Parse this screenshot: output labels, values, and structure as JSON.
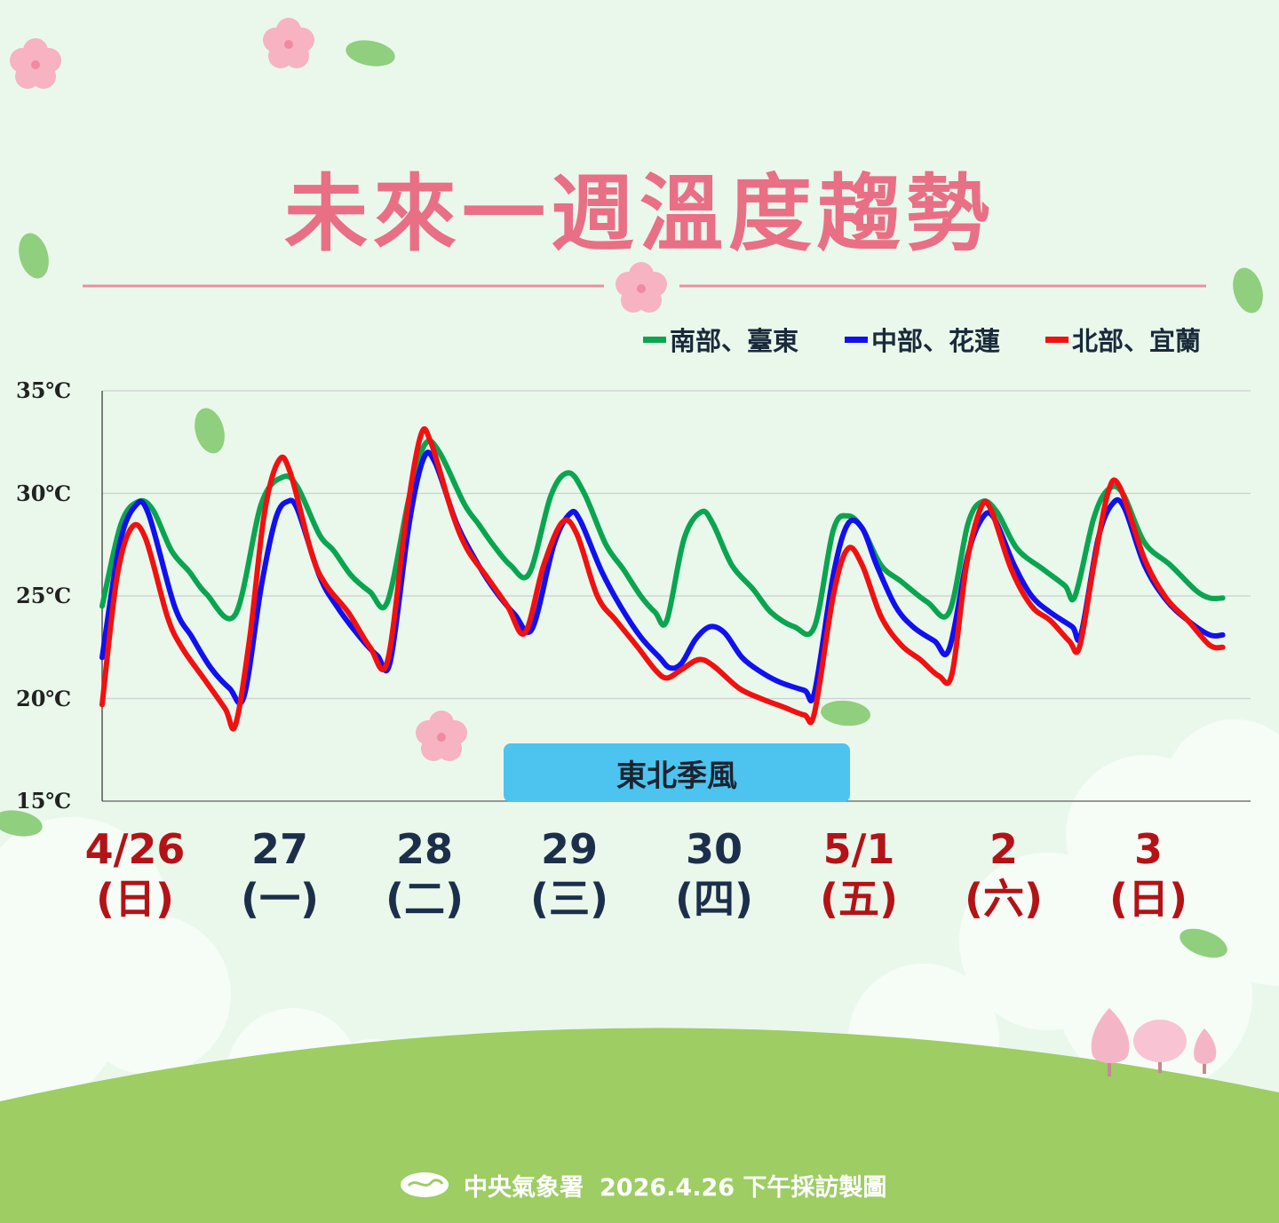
{
  "title": "未來一週溫度趨勢",
  "legend": [
    {
      "label": "南部、臺東",
      "color": "#0aa54f"
    },
    {
      "label": "中部、花蓮",
      "color": "#1010f0"
    },
    {
      "label": "北部、宜蘭",
      "color": "#f21010"
    }
  ],
  "annotation": "東北季風",
  "footer": {
    "agency": "中央氣象署",
    "note": "2026.4.26 下午採訪製圖"
  },
  "colors": {
    "title": "#e96f85",
    "grass": "#9dcd63",
    "background": "#eaf8ec",
    "weekend_date": "#b31217",
    "weekday_date": "#1c2f4a",
    "annotation_box": "#4cc4ef"
  },
  "chart_data": {
    "type": "line",
    "ylim": [
      15,
      35
    ],
    "yticks": [
      "35℃",
      "30℃",
      "25℃",
      "20℃",
      "15℃"
    ],
    "ytick_values": [
      35,
      30,
      25,
      20,
      15
    ],
    "grid": true,
    "legend_position": "top-right",
    "categories": [
      {
        "date": "4/26",
        "weekday": "(日)",
        "weekend": true
      },
      {
        "date": "27",
        "weekday": "(一)",
        "weekend": false
      },
      {
        "date": "28",
        "weekday": "(二)",
        "weekend": false
      },
      {
        "date": "29",
        "weekday": "(三)",
        "weekend": false
      },
      {
        "date": "30",
        "weekday": "(四)",
        "weekend": false
      },
      {
        "date": "5/1",
        "weekday": "(五)",
        "weekend": true
      },
      {
        "date": "2",
        "weekday": "(六)",
        "weekend": true
      },
      {
        "date": "3",
        "weekday": "(日)",
        "weekend": true
      }
    ],
    "x_unit": "days from 4/26 start",
    "series": [
      {
        "name": "南部、臺東",
        "color": "#0aa54f",
        "points": [
          [
            0,
            24.5
          ],
          [
            0.13,
            28.5
          ],
          [
            0.25,
            29.6
          ],
          [
            0.35,
            29.2
          ],
          [
            0.48,
            27.2
          ],
          [
            0.6,
            26.2
          ],
          [
            0.72,
            25.1
          ],
          [
            0.92,
            24.1
          ],
          [
            1.1,
            29.5
          ],
          [
            1.25,
            30.8
          ],
          [
            1.35,
            30.3
          ],
          [
            1.5,
            28.0
          ],
          [
            1.6,
            27.2
          ],
          [
            1.72,
            26.0
          ],
          [
            1.85,
            25.2
          ],
          [
            1.97,
            24.7
          ],
          [
            2.12,
            29.8
          ],
          [
            2.23,
            32.4
          ],
          [
            2.33,
            32.0
          ],
          [
            2.5,
            29.5
          ],
          [
            2.6,
            28.5
          ],
          [
            2.7,
            27.5
          ],
          [
            2.82,
            26.5
          ],
          [
            2.95,
            26.1
          ],
          [
            3.1,
            29.9
          ],
          [
            3.22,
            31.0
          ],
          [
            3.33,
            30.0
          ],
          [
            3.48,
            27.5
          ],
          [
            3.6,
            26.3
          ],
          [
            3.72,
            25.0
          ],
          [
            3.82,
            24.2
          ],
          [
            3.9,
            23.8
          ],
          [
            4.02,
            27.8
          ],
          [
            4.14,
            29.1
          ],
          [
            4.22,
            28.5
          ],
          [
            4.35,
            26.5
          ],
          [
            4.5,
            25.3
          ],
          [
            4.62,
            24.2
          ],
          [
            4.78,
            23.5
          ],
          [
            4.92,
            23.5
          ],
          [
            5.05,
            28.2
          ],
          [
            5.15,
            28.9
          ],
          [
            5.25,
            28.3
          ],
          [
            5.38,
            26.5
          ],
          [
            5.52,
            25.7
          ],
          [
            5.7,
            24.7
          ],
          [
            5.85,
            24.2
          ],
          [
            5.98,
            28.5
          ],
          [
            6.08,
            29.6
          ],
          [
            6.18,
            29.1
          ],
          [
            6.32,
            27.3
          ],
          [
            6.5,
            26.3
          ],
          [
            6.65,
            25.5
          ],
          [
            6.72,
            25.0
          ],
          [
            6.85,
            28.8
          ],
          [
            6.95,
            30.2
          ],
          [
            7.05,
            30.0
          ],
          [
            7.2,
            27.6
          ],
          [
            7.38,
            26.5
          ],
          [
            7.55,
            25.3
          ],
          [
            7.65,
            24.9
          ],
          [
            7.74,
            24.9
          ]
        ]
      },
      {
        "name": "中部、花蓮",
        "color": "#1010f0",
        "points": [
          [
            0,
            22.0
          ],
          [
            0.12,
            27.5
          ],
          [
            0.23,
            29.4
          ],
          [
            0.32,
            29.0
          ],
          [
            0.5,
            24.5
          ],
          [
            0.62,
            23.0
          ],
          [
            0.75,
            21.5
          ],
          [
            0.88,
            20.5
          ],
          [
            0.98,
            20.1
          ],
          [
            1.1,
            25.5
          ],
          [
            1.2,
            28.8
          ],
          [
            1.28,
            29.6
          ],
          [
            1.35,
            29.2
          ],
          [
            1.5,
            26.0
          ],
          [
            1.62,
            24.5
          ],
          [
            1.78,
            23.0
          ],
          [
            1.9,
            22.1
          ],
          [
            1.99,
            21.8
          ],
          [
            2.12,
            28.5
          ],
          [
            2.22,
            31.7
          ],
          [
            2.3,
            31.5
          ],
          [
            2.45,
            28.5
          ],
          [
            2.6,
            26.5
          ],
          [
            2.72,
            25.2
          ],
          [
            2.85,
            24.1
          ],
          [
            2.97,
            23.4
          ],
          [
            3.12,
            27.5
          ],
          [
            3.23,
            29.0
          ],
          [
            3.3,
            28.7
          ],
          [
            3.45,
            26.2
          ],
          [
            3.58,
            24.5
          ],
          [
            3.72,
            23.0
          ],
          [
            3.85,
            22.0
          ],
          [
            3.92,
            21.5
          ],
          [
            4.0,
            21.7
          ],
          [
            4.1,
            22.9
          ],
          [
            4.2,
            23.5
          ],
          [
            4.3,
            23.2
          ],
          [
            4.42,
            22.0
          ],
          [
            4.55,
            21.3
          ],
          [
            4.68,
            20.8
          ],
          [
            4.85,
            20.4
          ],
          [
            4.92,
            20.3
          ],
          [
            5.05,
            26.0
          ],
          [
            5.15,
            28.5
          ],
          [
            5.25,
            28.3
          ],
          [
            5.35,
            26.5
          ],
          [
            5.48,
            24.5
          ],
          [
            5.6,
            23.5
          ],
          [
            5.75,
            22.8
          ],
          [
            5.85,
            22.4
          ],
          [
            5.98,
            27.0
          ],
          [
            6.08,
            28.8
          ],
          [
            6.16,
            28.8
          ],
          [
            6.3,
            26.5
          ],
          [
            6.42,
            25.0
          ],
          [
            6.55,
            24.2
          ],
          [
            6.7,
            23.5
          ],
          [
            6.76,
            23.1
          ],
          [
            6.88,
            27.8
          ],
          [
            6.98,
            29.5
          ],
          [
            7.06,
            29.3
          ],
          [
            7.2,
            26.5
          ],
          [
            7.35,
            24.8
          ],
          [
            7.5,
            23.8
          ],
          [
            7.65,
            23.1
          ],
          [
            7.74,
            23.1
          ]
        ]
      },
      {
        "name": "北部、宜蘭",
        "color": "#f21010",
        "points": [
          [
            0,
            19.7
          ],
          [
            0.1,
            25.8
          ],
          [
            0.2,
            28.3
          ],
          [
            0.3,
            27.8
          ],
          [
            0.45,
            24.0
          ],
          [
            0.55,
            22.5
          ],
          [
            0.7,
            21.0
          ],
          [
            0.85,
            19.5
          ],
          [
            0.92,
            18.7
          ],
          [
            1.02,
            23.0
          ],
          [
            1.12,
            29.0
          ],
          [
            1.22,
            31.6
          ],
          [
            1.3,
            31.0
          ],
          [
            1.45,
            27.0
          ],
          [
            1.55,
            25.5
          ],
          [
            1.7,
            24.2
          ],
          [
            1.85,
            22.5
          ],
          [
            1.97,
            21.8
          ],
          [
            2.1,
            28.8
          ],
          [
            2.2,
            32.8
          ],
          [
            2.27,
            32.5
          ],
          [
            2.42,
            29.0
          ],
          [
            2.52,
            27.3
          ],
          [
            2.65,
            26.0
          ],
          [
            2.8,
            24.5
          ],
          [
            2.92,
            23.2
          ],
          [
            3.05,
            26.5
          ],
          [
            3.18,
            28.6
          ],
          [
            3.28,
            28.0
          ],
          [
            3.42,
            25.0
          ],
          [
            3.55,
            23.8
          ],
          [
            3.7,
            22.5
          ],
          [
            3.82,
            21.4
          ],
          [
            3.9,
            21.0
          ],
          [
            4.0,
            21.4
          ],
          [
            4.12,
            21.9
          ],
          [
            4.22,
            21.6
          ],
          [
            4.4,
            20.5
          ],
          [
            4.55,
            20.0
          ],
          [
            4.7,
            19.6
          ],
          [
            4.85,
            19.2
          ],
          [
            4.92,
            19.3
          ],
          [
            5.05,
            25.0
          ],
          [
            5.15,
            27.3
          ],
          [
            5.25,
            26.5
          ],
          [
            5.38,
            24.0
          ],
          [
            5.52,
            22.6
          ],
          [
            5.65,
            21.9
          ],
          [
            5.78,
            21.1
          ],
          [
            5.87,
            21.2
          ],
          [
            5.97,
            26.5
          ],
          [
            6.07,
            29.3
          ],
          [
            6.14,
            29.2
          ],
          [
            6.28,
            26.3
          ],
          [
            6.42,
            24.5
          ],
          [
            6.55,
            23.8
          ],
          [
            6.68,
            22.8
          ],
          [
            6.75,
            22.5
          ],
          [
            6.85,
            26.5
          ],
          [
            6.95,
            30.1
          ],
          [
            7.03,
            30.3
          ],
          [
            7.2,
            26.8
          ],
          [
            7.35,
            24.9
          ],
          [
            7.5,
            23.8
          ],
          [
            7.65,
            22.6
          ],
          [
            7.74,
            22.5
          ]
        ]
      }
    ]
  }
}
